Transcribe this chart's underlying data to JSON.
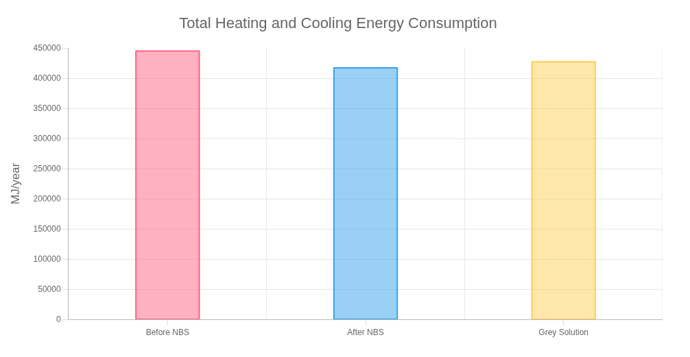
{
  "chart_data": {
    "type": "bar",
    "title": "Total Heating and Cooling Energy Consumption",
    "ylabel": "MJ/year",
    "categories": [
      "Before NBS",
      "After NBS",
      "Grey Solution"
    ],
    "values": [
      445000,
      417000,
      427000
    ],
    "colors": [
      "#ff6384",
      "#36a2eb",
      "#ffcd56"
    ],
    "ylim": [
      0,
      450000
    ],
    "yticks": [
      0,
      50000,
      100000,
      150000,
      200000,
      250000,
      300000,
      350000,
      400000,
      450000
    ],
    "grid": true
  }
}
